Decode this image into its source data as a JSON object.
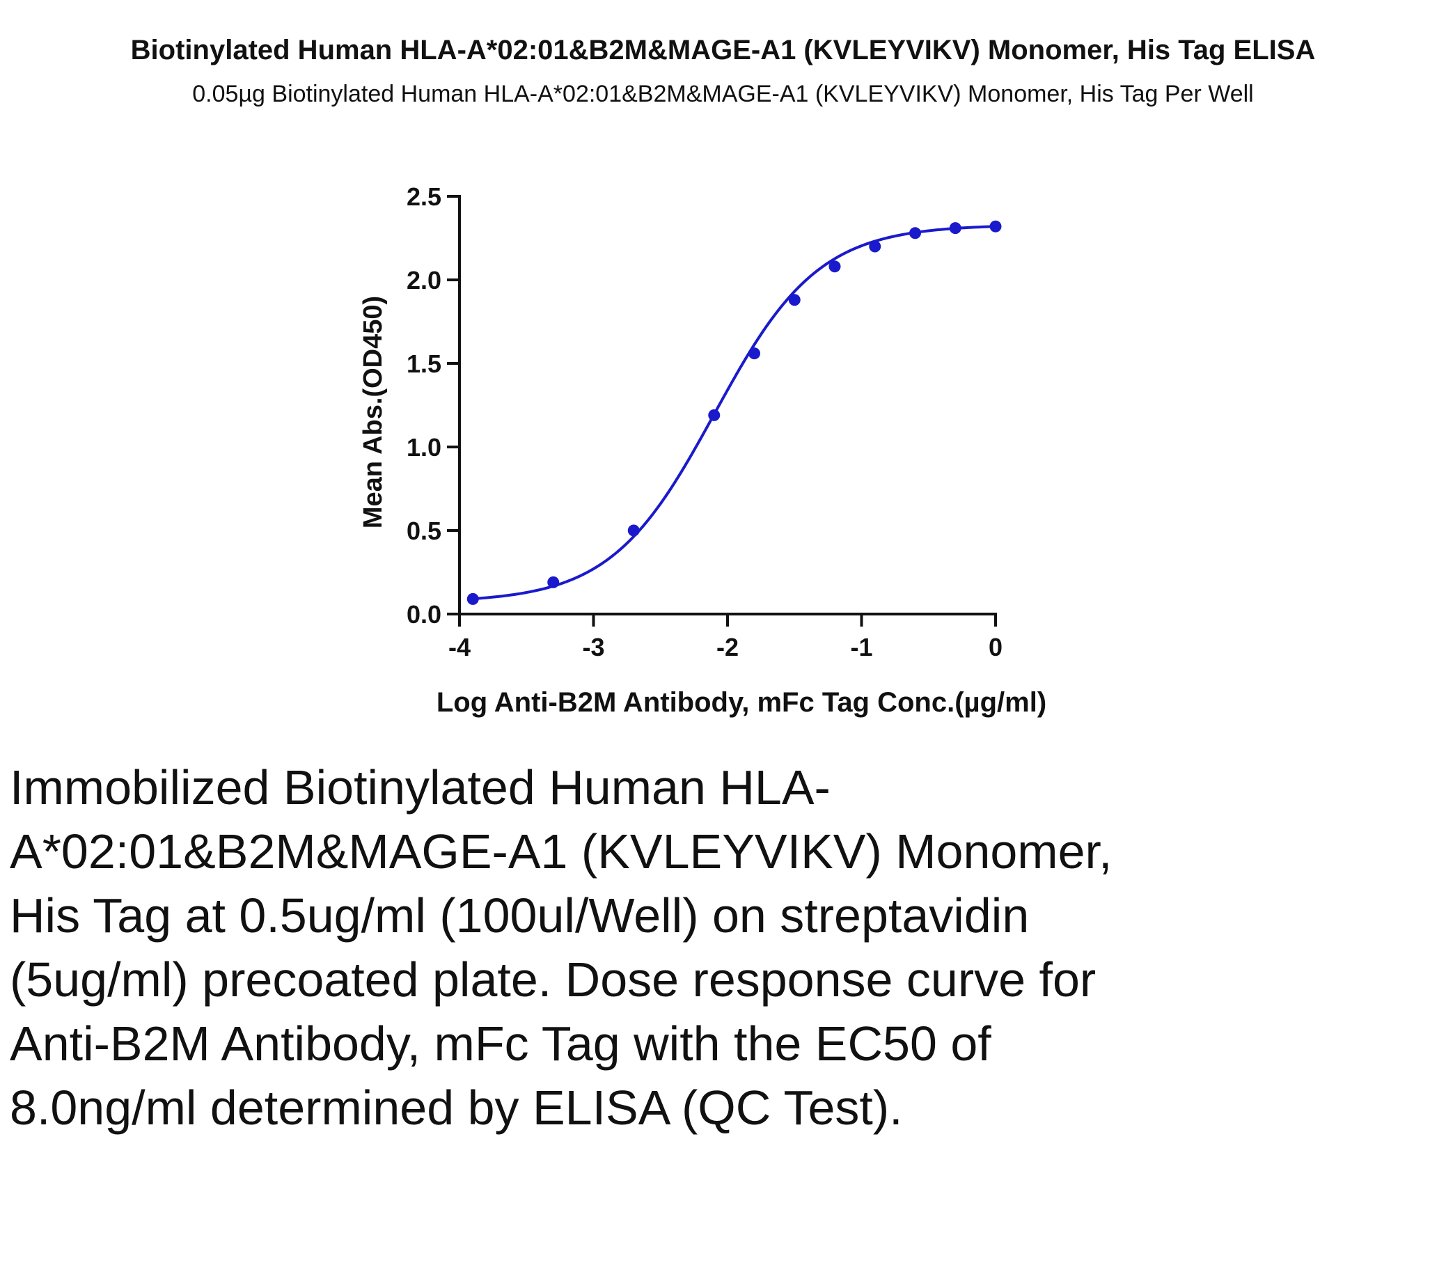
{
  "chart_data": {
    "type": "line",
    "title": "Biotinylated Human HLA-A*02:01&B2M&MAGE-A1 (KVLEYVIKV) Monomer, His Tag ELISA",
    "subtitle": "0.05µg Biotinylated Human HLA-A*02:01&B2M&MAGE-A1 (KVLEYVIKV) Monomer, His Tag Per Well",
    "xlabel": "Log Anti-B2M Antibody, mFc Tag Conc.(µg/ml)",
    "ylabel": "Mean Abs.(OD450)",
    "xlim": [
      -4,
      0
    ],
    "ylim": [
      0,
      2.5
    ],
    "x_ticks": [
      -4,
      -3,
      -2,
      -1,
      0
    ],
    "x_tick_labels": [
      "-4",
      "-3",
      "-2",
      "-1",
      "0"
    ],
    "y_ticks": [
      0.0,
      0.5,
      1.0,
      1.5,
      2.0,
      2.5
    ],
    "y_tick_labels": [
      "0.0",
      "0.5",
      "1.0",
      "1.5",
      "2.0",
      "2.5"
    ],
    "grid": false,
    "series": [
      {
        "color": "#1a1acc",
        "x": [
          -3.9,
          -3.3,
          -2.7,
          -2.1,
          -1.8,
          -1.5,
          -1.2,
          -0.9,
          -0.6,
          -0.3,
          0.0
        ],
        "y": [
          0.09,
          0.19,
          0.5,
          1.19,
          1.56,
          1.88,
          2.08,
          2.2,
          2.28,
          2.31,
          2.32
        ]
      }
    ],
    "fit": {
      "model": "4PL",
      "bottom": 0.07,
      "top": 2.33,
      "log_ec50": -2.097,
      "hill": 1.12
    }
  },
  "caption": "Immobilized Biotinylated Human HLA-A*02:01&B2M&MAGE-A1 (KVLEYVIKV) Monomer, His Tag at 0.5ug/ml (100ul/Well) on streptavidin (5ug/ml) precoated plate. Dose response curve for Anti-B2M Antibody, mFc Tag with the EC50 of 8.0ng/ml determined by ELISA (QC Test)."
}
